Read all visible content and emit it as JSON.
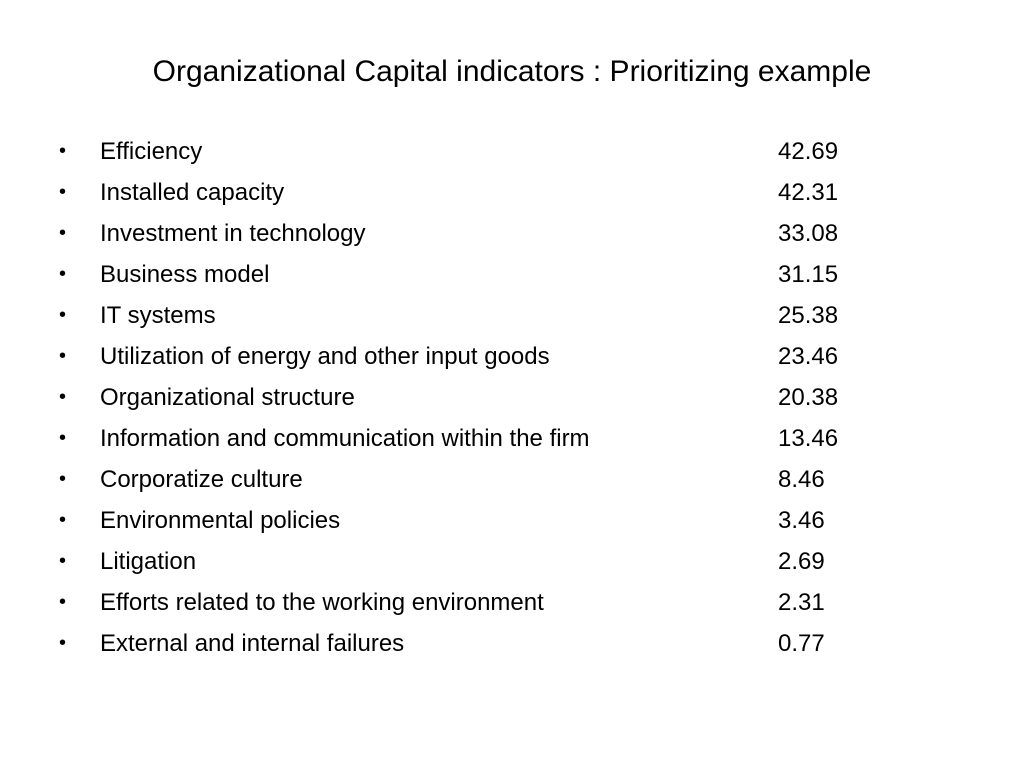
{
  "slide": {
    "title": "Organizational Capital indicators : Prioritizing example",
    "bullet_char": "•",
    "items": [
      {
        "label": "Efficiency",
        "value": "42.69"
      },
      {
        "label": "Installed capacity",
        "value": "42.31"
      },
      {
        "label": "Investment in technology",
        "value": "33.08"
      },
      {
        "label": "Business model",
        "value": "31.15"
      },
      {
        "label": "IT systems",
        "value": "25.38"
      },
      {
        "label": "Utilization of energy and other input goods",
        "value": "23.46"
      },
      {
        "label": "Organizational structure",
        "value": "20.38"
      },
      {
        "label": "Information and communication within the firm",
        "value": "13.46"
      },
      {
        "label": "Corporatize culture",
        "value": "8.46"
      },
      {
        "label": "Environmental policies",
        "value": "3.46"
      },
      {
        "label": "Litigation",
        "value": "2.69"
      },
      {
        "label": "Efforts related to the working environment",
        "value": "2.31"
      },
      {
        "label": "External and internal failures",
        "value": "0.77"
      }
    ]
  }
}
